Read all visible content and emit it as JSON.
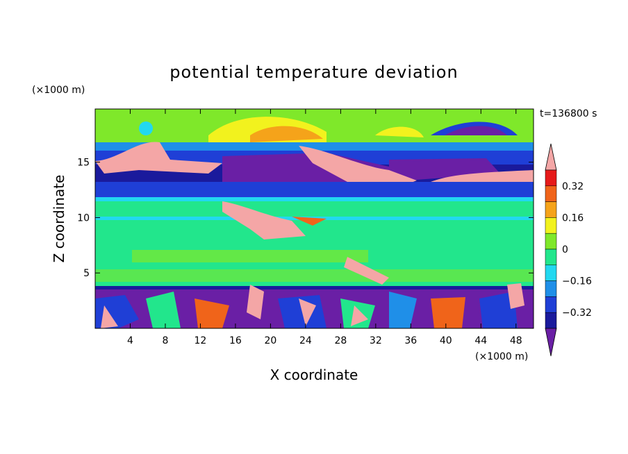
{
  "chart_data": {
    "type": "heatmap",
    "title": "potential temperature deviation",
    "xlabel": "X coordinate",
    "ylabel": "Z coordinate",
    "x_unit": "(×1000 m)",
    "y_unit": "(×1000 m)",
    "time_label": "t=136800 s",
    "xlim": [
      0,
      50
    ],
    "ylim": [
      0,
      19.8
    ],
    "x_ticks": [
      4,
      8,
      12,
      16,
      20,
      24,
      28,
      32,
      36,
      40,
      44,
      48
    ],
    "y_ticks": [
      5,
      10,
      15
    ],
    "colorbar": {
      "levels": [
        -0.4,
        -0.32,
        -0.24,
        -0.16,
        -0.08,
        0,
        0.08,
        0.16,
        0.24,
        0.32,
        0.4
      ],
      "tick_labels": [
        "0.32",
        "0.16",
        "0",
        "−0.16",
        "−0.32"
      ],
      "tick_values": [
        0.32,
        0.16,
        0,
        -0.16,
        -0.32
      ],
      "colors": [
        "#6a1fa5",
        "#1a1a9c",
        "#1f3fd6",
        "#1f8fe8",
        "#22d8f0",
        "#22e68c",
        "#7fe82a",
        "#f2f21e",
        "#f5a31a",
        "#f0641a",
        "#e61a1a",
        "#f4a6a6"
      ]
    },
    "grid": false
  }
}
